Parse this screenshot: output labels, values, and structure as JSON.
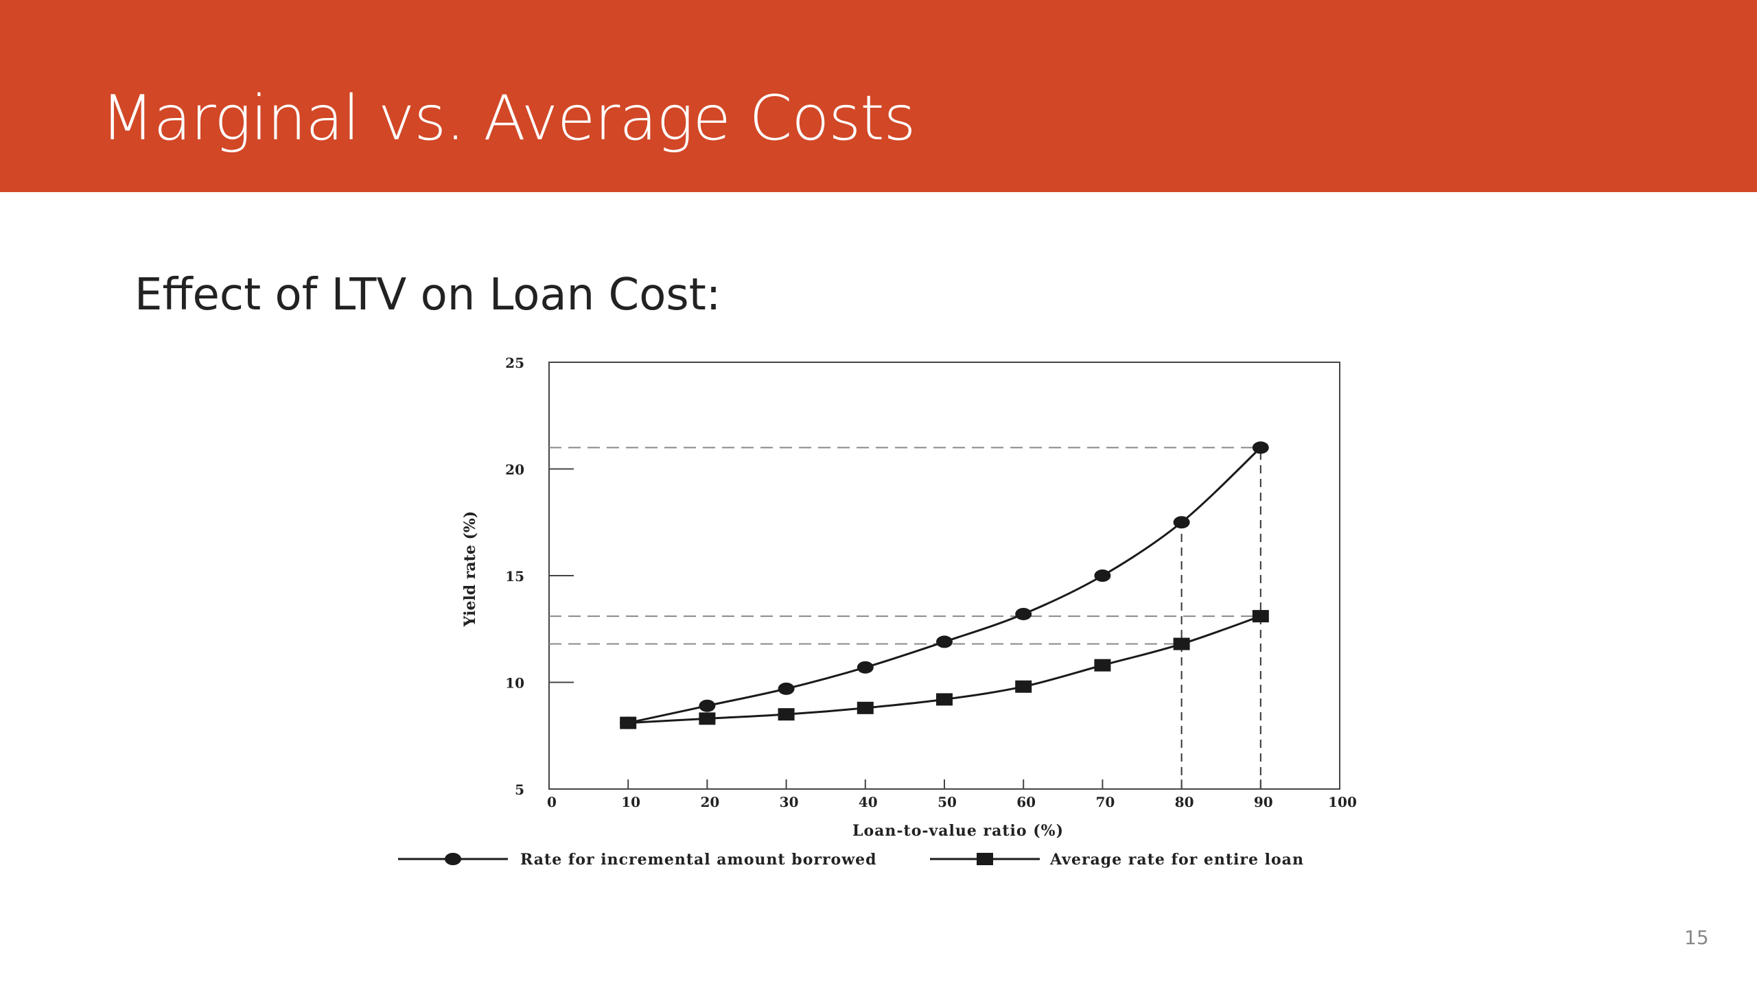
{
  "slide": {
    "title": "Marginal vs. Average Costs",
    "subtitle": "Effect of LTV on Loan Cost:",
    "page_number": "15"
  },
  "colors": {
    "banner": "#D24726",
    "title_text": "#FFFFFF",
    "series_line": "#1A1A1A",
    "reference_lines": "#888888"
  },
  "chart_data": {
    "type": "line",
    "xlabel": "Loan-to-value ratio (%)",
    "ylabel": "Yield rate (%)",
    "xlim": [
      0,
      100
    ],
    "ylim": [
      5,
      25
    ],
    "xticks": [
      0,
      10,
      20,
      30,
      40,
      50,
      60,
      70,
      80,
      90,
      100
    ],
    "yticks": [
      5,
      10,
      15,
      20,
      25
    ],
    "grid": false,
    "legend_position": "bottom",
    "series": [
      {
        "name": "Rate for incremental amount borrowed",
        "marker": "circle",
        "x": [
          10,
          20,
          30,
          40,
          50,
          60,
          70,
          80,
          90
        ],
        "y": [
          8.1,
          8.9,
          9.7,
          10.7,
          11.9,
          13.2,
          15.0,
          17.5,
          21.0
        ]
      },
      {
        "name": "Average rate for entire loan",
        "marker": "square",
        "x": [
          10,
          20,
          30,
          40,
          50,
          60,
          70,
          80,
          90
        ],
        "y": [
          8.1,
          8.3,
          8.5,
          8.8,
          9.2,
          9.8,
          10.8,
          11.8,
          13.1
        ]
      }
    ],
    "reference_lines": [
      {
        "orientation": "horizontal",
        "value": 21.0
      },
      {
        "orientation": "horizontal",
        "value": 13.1
      },
      {
        "orientation": "horizontal",
        "value": 11.8
      },
      {
        "orientation": "vertical",
        "value": 80
      },
      {
        "orientation": "vertical",
        "value": 90
      }
    ]
  }
}
